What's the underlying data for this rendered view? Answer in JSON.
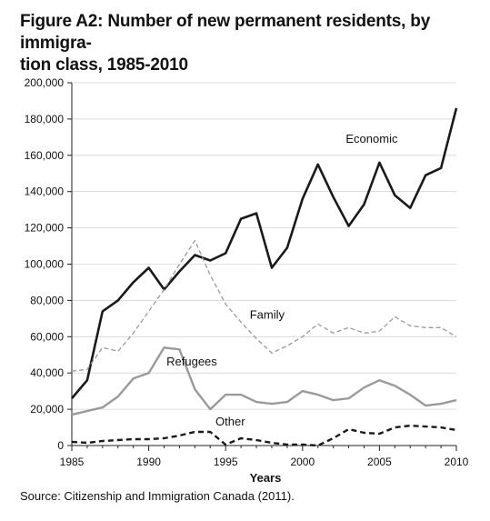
{
  "figure": {
    "title_line1": "Figure A2: Number of new permanent residents, by immigra-",
    "title_line2": "tion class, 1985-2010",
    "source": "Source: Citizenship and Immigration Canada (2011)."
  },
  "chart_data": {
    "type": "line",
    "xlabel": "Years",
    "ylabel": "",
    "xlim": [
      1985,
      2010
    ],
    "ylim": [
      0,
      200000
    ],
    "x_ticks": [
      1985,
      1990,
      1995,
      2000,
      2005,
      2010
    ],
    "x_tick_labels": [
      "1985",
      "1990",
      "1995",
      "2000",
      "2005",
      "2010"
    ],
    "y_ticks": [
      0,
      20000,
      40000,
      60000,
      80000,
      100000,
      120000,
      140000,
      160000,
      180000,
      200000
    ],
    "y_tick_labels": [
      "0",
      "20,000",
      "40,000",
      "60,000",
      "80,000",
      "100,000",
      "120,000",
      "140,000",
      "160,000",
      "180,000",
      "200,000"
    ],
    "grid": "horizontal",
    "x": [
      1985,
      1986,
      1987,
      1988,
      1989,
      1990,
      1991,
      1992,
      1993,
      1994,
      1995,
      1996,
      1997,
      1998,
      1999,
      2000,
      2001,
      2002,
      2003,
      2004,
      2005,
      2006,
      2007,
      2008,
      2009,
      2010
    ],
    "series": [
      {
        "name": "Economic",
        "color": "#1a1a1a",
        "style": "solid",
        "width": 2.6,
        "values": [
          26000,
          36000,
          74000,
          80000,
          90000,
          98000,
          86000,
          96000,
          105000,
          102000,
          106000,
          125000,
          128000,
          98000,
          109000,
          136000,
          155000,
          137000,
          121000,
          133000,
          156000,
          138000,
          131000,
          149000,
          153000,
          186000
        ]
      },
      {
        "name": "Family",
        "color": "#9a9a9a",
        "style": "dashed",
        "width": 1.3,
        "values": [
          41000,
          42000,
          54000,
          52000,
          62000,
          74000,
          86000,
          100000,
          113000,
          94000,
          78000,
          68000,
          59000,
          51000,
          55000,
          60000,
          67000,
          62000,
          65000,
          62000,
          63000,
          71000,
          66000,
          65000,
          65000,
          60000
        ]
      },
      {
        "name": "Refugees",
        "color": "#9a9a9a",
        "style": "solid",
        "width": 2.4,
        "values": [
          17000,
          19000,
          21000,
          27000,
          37000,
          40000,
          54000,
          53000,
          31000,
          20000,
          28000,
          28000,
          24000,
          23000,
          24000,
          30000,
          28000,
          25000,
          26000,
          32000,
          36000,
          33000,
          28000,
          22000,
          23000,
          25000
        ]
      },
      {
        "name": "Other",
        "color": "#1a1a1a",
        "style": "dashed",
        "width": 2.4,
        "values": [
          2000,
          1500,
          2500,
          3000,
          3500,
          3500,
          4000,
          5500,
          7500,
          7500,
          500,
          4000,
          3000,
          1500,
          500,
          500,
          0,
          4000,
          9000,
          7000,
          6500,
          10000,
          11000,
          10500,
          10000,
          8500
        ]
      }
    ],
    "annotations": [
      {
        "text": "Economic",
        "x": 2004.5,
        "y": 167000
      },
      {
        "text": "Family",
        "x": 1997.7,
        "y": 70000
      },
      {
        "text": "Refugees",
        "x": 1992.8,
        "y": 44000
      },
      {
        "text": "Other",
        "x": 1995.3,
        "y": 11000
      }
    ]
  }
}
